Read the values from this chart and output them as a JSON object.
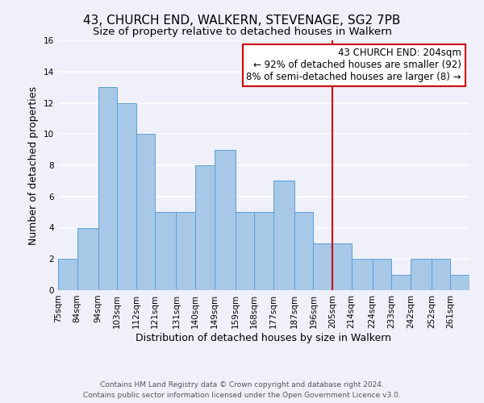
{
  "title": "43, CHURCH END, WALKERN, STEVENAGE, SG2 7PB",
  "subtitle": "Size of property relative to detached houses in Walkern",
  "xlabel": "Distribution of detached houses by size in Walkern",
  "ylabel": "Number of detached properties",
  "bar_color": "#a8c8e8",
  "bar_edge_color": "#5a9fd4",
  "bin_labels": [
    "75sqm",
    "84sqm",
    "94sqm",
    "103sqm",
    "112sqm",
    "121sqm",
    "131sqm",
    "140sqm",
    "149sqm",
    "159sqm",
    "168sqm",
    "177sqm",
    "187sqm",
    "196sqm",
    "205sqm",
    "214sqm",
    "224sqm",
    "233sqm",
    "242sqm",
    "252sqm",
    "261sqm"
  ],
  "bin_edges": [
    75,
    84,
    94,
    103,
    112,
    121,
    131,
    140,
    149,
    159,
    168,
    177,
    187,
    196,
    205,
    214,
    224,
    233,
    242,
    252,
    261
  ],
  "counts": [
    2,
    4,
    13,
    12,
    10,
    5,
    5,
    8,
    9,
    5,
    5,
    7,
    5,
    3,
    3,
    2,
    2,
    1,
    2,
    2,
    1
  ],
  "ylim": [
    0,
    16
  ],
  "yticks": [
    0,
    2,
    4,
    6,
    8,
    10,
    12,
    14,
    16
  ],
  "vline_x": 205,
  "vline_color": "#cc0000",
  "annotation_title": "43 CHURCH END: 204sqm",
  "annotation_line1": "← 92% of detached houses are smaller (92)",
  "annotation_line2": "8% of semi-detached houses are larger (8) →",
  "annotation_box_color": "#ffffff",
  "annotation_border_color": "#cc0000",
  "footer_line1": "Contains HM Land Registry data © Crown copyright and database right 2024.",
  "footer_line2": "Contains public sector information licensed under the Open Government Licence v3.0.",
  "background_color": "#f0f0fa",
  "grid_color": "#ffffff",
  "title_fontsize": 11,
  "subtitle_fontsize": 9.5,
  "axis_label_fontsize": 9,
  "tick_fontsize": 7.5,
  "annotation_fontsize": 8.5,
  "footer_fontsize": 6.5
}
